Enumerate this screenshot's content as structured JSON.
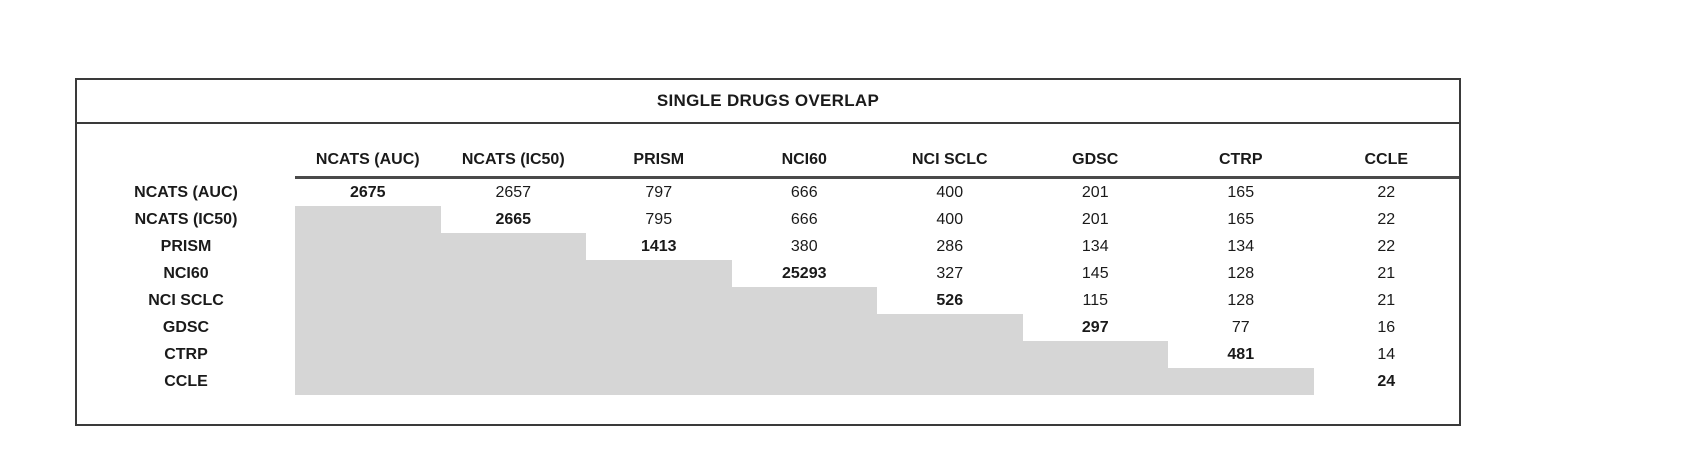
{
  "title": "SINGLE DRUGS OVERLAP",
  "colors": {
    "shaded_fill": "#d6d6d6",
    "border": "#3a3a3a"
  },
  "chart_data": {
    "type": "table",
    "title": "SINGLE DRUGS OVERLAP",
    "columns": [
      "NCATS (AUC)",
      "NCATS (IC50)",
      "PRISM",
      "NCI60",
      "NCI SCLC",
      "GDSC",
      "CTRP",
      "CCLE"
    ],
    "rows": [
      "NCATS (AUC)",
      "NCATS (IC50)",
      "PRISM",
      "NCI60",
      "NCI SCLC",
      "GDSC",
      "CTRP",
      "CCLE"
    ],
    "matrix": [
      [
        "2675",
        "2657",
        "797",
        "666",
        "400",
        "201",
        "165",
        "22"
      ],
      [
        "",
        "2665",
        "795",
        "666",
        "400",
        "201",
        "165",
        "22"
      ],
      [
        "",
        "",
        "1413",
        "380",
        "286",
        "134",
        "134",
        "22"
      ],
      [
        "",
        "",
        "",
        "25293",
        "327",
        "145",
        "128",
        "21"
      ],
      [
        "",
        "",
        "",
        "",
        "526",
        "115",
        "128",
        "21"
      ],
      [
        "",
        "",
        "",
        "",
        "",
        "297",
        "77",
        "16"
      ],
      [
        "",
        "",
        "",
        "",
        "",
        "",
        "481",
        "14"
      ],
      [
        "",
        "",
        "",
        "",
        "",
        "",
        "",
        "24"
      ]
    ],
    "diagonal_bold": true,
    "lower_triangle_shaded": true
  }
}
